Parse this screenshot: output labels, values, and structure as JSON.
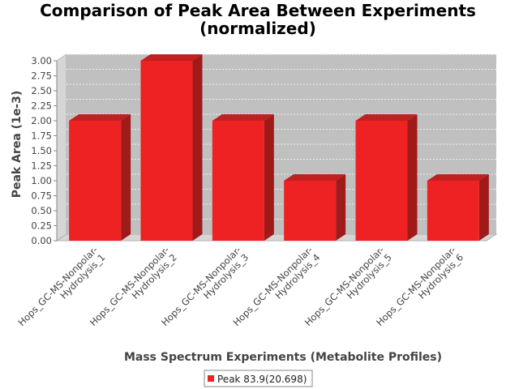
{
  "chart_data": {
    "type": "bar",
    "title_lines": [
      "Comparison of Peak Area Between Experiments",
      "(normalized)"
    ],
    "xlabel": "Mass Spectrum Experiments (Metabolite Profiles)",
    "ylabel": "Peak Area (1e-3)",
    "categories": [
      [
        "Hops_GC-MS-Nonpolar-",
        "Hydrolysis_1"
      ],
      [
        "Hops_GC-MS-Nonpolar-",
        "Hydrolysis_2"
      ],
      [
        "Hops_GC-MS-Nonpolar-",
        "Hydrolysis_3"
      ],
      [
        "Hops_GC-MS-Nonpolar-",
        "Hydrolysis_4"
      ],
      [
        "Hops_GC-MS-Nonpolar-",
        "Hydrolysis_5"
      ],
      [
        "Hops_GC-MS-Nonpolar-",
        "Hydrolysis_6"
      ]
    ],
    "series": [
      {
        "name": "Peak 83.9(20.698)",
        "values": [
          2.0,
          3.0,
          2.0,
          1.0,
          2.0,
          1.0
        ]
      }
    ],
    "ylim": [
      0,
      3.0
    ],
    "yticks": [
      "0.00",
      "0.25",
      "0.50",
      "0.75",
      "1.00",
      "1.25",
      "1.50",
      "1.75",
      "2.00",
      "2.25",
      "2.50",
      "2.75",
      "3.00"
    ],
    "grid": true,
    "legend_position": "bottom",
    "colors": {
      "bar": "#ee2222",
      "bar_top": "#c02020",
      "bar_side": "#a01a1a",
      "plot_bg": "#c0c0c0",
      "wall": "#d6d6d6"
    }
  }
}
